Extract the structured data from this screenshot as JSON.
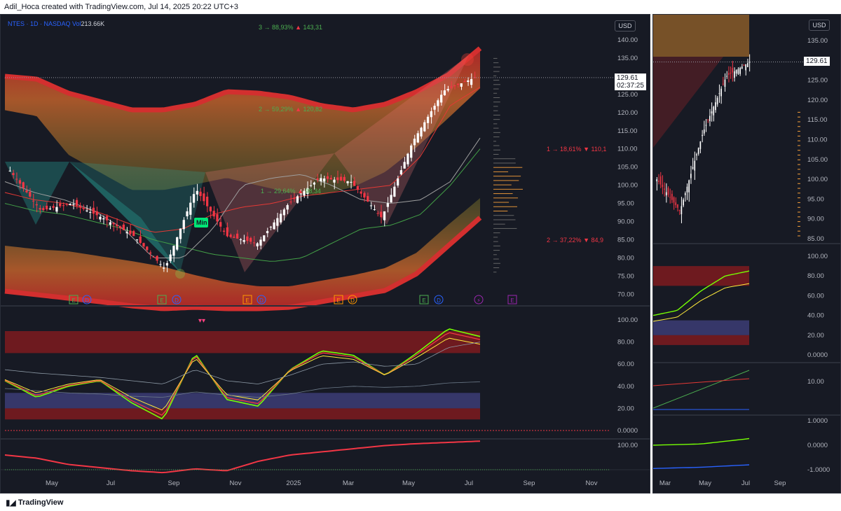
{
  "header": {
    "title": "Adil_Hoca created with TradingView.com, Jul 14, 2025 20:22 UTC+3"
  },
  "footer": {
    "brand": "TradingView"
  },
  "main_chart": {
    "symbol_line": "NTES · 1D · NASDAQ",
    "vol_label": "Vol",
    "vol_value": "213.66K",
    "currency": "USD",
    "last_price": "129.61",
    "countdown": "02:37:25",
    "min_label": "Min",
    "fib_up": [
      {
        "idx": "3 →",
        "pct": "88,93%",
        "arrow": "▲",
        "price": "143,31"
      },
      {
        "idx": "2 →",
        "pct": "59,29%",
        "arrow": "▲",
        "price": "120,82"
      },
      {
        "idx": "1 →",
        "pct": "29,64%",
        "arrow": "▲",
        "price": "98,34"
      }
    ],
    "fib_down": [
      {
        "idx": "1 →",
        "pct": "18,61%",
        "arrow": "▼",
        "price": "110,1"
      },
      {
        "idx": "2 →",
        "pct": "37,22%",
        "arrow": "▼",
        "price": "84,9"
      }
    ],
    "event_markers": [
      "E",
      "D",
      "E",
      "D",
      "E",
      "D",
      "E",
      "D",
      "E",
      "D",
      "⚡",
      "E"
    ],
    "x_ticks": [
      "May",
      "Jul",
      "Sep",
      "Nov",
      "2025",
      "Mar",
      "May",
      "Jul",
      "Sep",
      "Nov"
    ]
  },
  "side_chart": {
    "currency": "USD",
    "last_price": "129.61",
    "x_ticks": [
      "Mar",
      "May",
      "Jul",
      "Sep"
    ]
  },
  "colors": {
    "bg": "#171a24",
    "up": "#ffffff",
    "down": "#f23645",
    "green": "#4caf50",
    "accent": "#2962ff"
  },
  "chart_data": [
    {
      "type": "candlestick",
      "title": "NTES · 1D · NASDAQ",
      "ylim": [
        67,
        145
      ],
      "y_ticks": [
        "140.00",
        "135.00",
        "130.00",
        "125.00",
        "120.00",
        "115.00",
        "110.00",
        "105.00",
        "100.00",
        "95.00",
        "90.00",
        "85.00",
        "80.00",
        "75.00",
        "70.00"
      ],
      "x": [
        "2024-04",
        "2024-05",
        "2024-06",
        "2024-07",
        "2024-08",
        "2024-09",
        "2024-10",
        "2024-11",
        "2024-12",
        "2025-01",
        "2025-02",
        "2025-03",
        "2025-04",
        "2025-05",
        "2025-06",
        "2025-07"
      ],
      "close": [
        104,
        93,
        95,
        91,
        86,
        77,
        99,
        86,
        84,
        95,
        102,
        101,
        91,
        112,
        126,
        129.61
      ],
      "annotations": [
        "Min"
      ]
    },
    {
      "type": "line",
      "ylim": [
        0,
        100
      ],
      "y_ticks": [
        "100.00",
        "80.00",
        "60.00",
        "40.00",
        "20.00",
        "0.0000"
      ],
      "x": [
        "2024-04",
        "2024-05",
        "2024-06",
        "2024-07",
        "2024-08",
        "2024-09",
        "2024-10",
        "2024-11",
        "2024-12",
        "2025-01",
        "2025-02",
        "2025-03",
        "2025-04",
        "2025-05",
        "2025-06",
        "2025-07"
      ],
      "series": [
        {
          "values": [
            45,
            30,
            40,
            45,
            25,
            10,
            70,
            28,
            22,
            55,
            72,
            68,
            50,
            70,
            92,
            85
          ]
        }
      ]
    },
    {
      "type": "line",
      "y_ticks": [
        "100.00"
      ],
      "x": [
        "2024-04",
        "2024-07",
        "2024-10",
        "2025-01",
        "2025-04",
        "2025-07"
      ],
      "series": [
        {
          "values": [
            -20,
            -40,
            -70,
            -30,
            10,
            40
          ]
        }
      ]
    },
    {
      "type": "candlestick",
      "ylim": [
        83,
        138
      ],
      "y_ticks": [
        "135.00",
        "130.00",
        "125.00",
        "120.00",
        "115.00",
        "110.00",
        "105.00",
        "100.00",
        "95.00",
        "90.00",
        "85.00"
      ],
      "x": [
        "2025-03",
        "2025-04",
        "2025-05",
        "2025-06",
        "2025-07"
      ],
      "close": [
        100,
        92,
        112,
        126,
        129.61
      ]
    },
    {
      "type": "line",
      "ylim": [
        0,
        100
      ],
      "y_ticks": [
        "100.00",
        "80.00",
        "60.00",
        "40.00",
        "20.00",
        "0.0000"
      ],
      "x": [
        "2025-03",
        "2025-04",
        "2025-05",
        "2025-06",
        "2025-07"
      ],
      "series": [
        {
          "values": [
            40,
            45,
            65,
            80,
            85
          ]
        }
      ]
    },
    {
      "type": "line",
      "y_ticks": [
        "10.00"
      ],
      "x": [
        "2025-03",
        "2025-07"
      ],
      "series": [
        {
          "values": [
            2,
            12
          ]
        },
        {
          "values": [
            5,
            10
          ]
        }
      ]
    },
    {
      "type": "line",
      "ylim": [
        -1,
        1
      ],
      "y_ticks": [
        "1.0000",
        "0.0000",
        "-1.0000"
      ],
      "x": [
        "2025-03",
        "2025-05",
        "2025-07"
      ],
      "series": [
        {
          "values": [
            0,
            0.05,
            0.27
          ]
        },
        {
          "values": [
            -0.95,
            -0.9,
            -0.8
          ]
        }
      ]
    }
  ]
}
